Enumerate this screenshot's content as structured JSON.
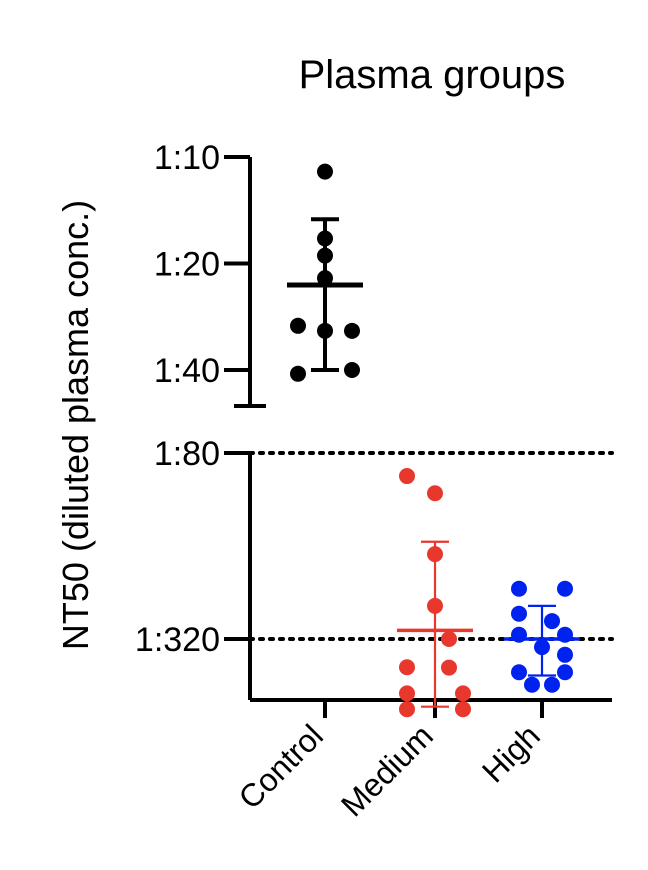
{
  "chart_data": {
    "type": "scatter",
    "title": "Plasma groups",
    "xlabel": "",
    "ylabel": "NT50 (diluted plasma conc.)",
    "categories": [
      "Control",
      "Medium",
      "High"
    ],
    "y_scale": "log2 dilution (broken axis)",
    "y_ticks_upper": [
      "1:10",
      "1:20",
      "1:40"
    ],
    "y_ticks_lower": [
      "1:80",
      "1:320"
    ],
    "reference_lines": [
      {
        "value": 80,
        "label": "1:80",
        "style": "dotted"
      },
      {
        "value": 320,
        "label": "1:320",
        "style": "dotted"
      }
    ],
    "series": [
      {
        "name": "Control",
        "color": "#000000",
        "points": [
          11,
          17,
          19,
          22,
          30,
          31,
          31,
          41,
          40
        ],
        "mean": 23,
        "error": [
          15,
          40
        ]
      },
      {
        "name": "Medium",
        "color": "#e8382e",
        "points": [
          95,
          108,
          170,
          250,
          320,
          395,
          396,
          480,
          480,
          540,
          540
        ],
        "mean": 300,
        "error": [
          155,
          530
        ]
      },
      {
        "name": "High",
        "color": "#0022ee",
        "points": [
          220,
          220,
          265,
          280,
          310,
          310,
          340,
          360,
          410,
          410,
          450,
          450
        ],
        "mean": 320,
        "error": [
          250,
          420
        ]
      }
    ],
    "grid": false,
    "legend": "none"
  }
}
